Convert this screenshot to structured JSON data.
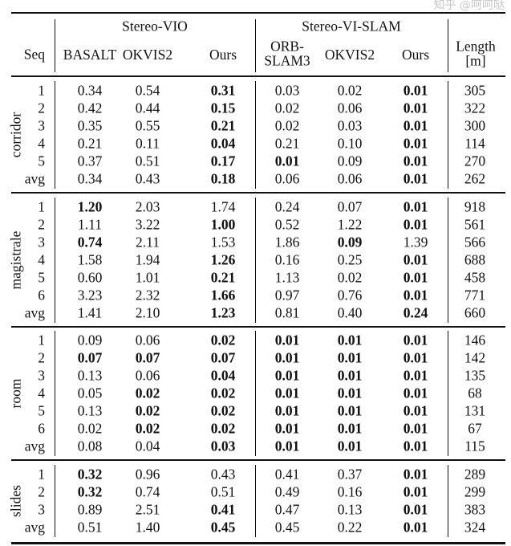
{
  "table": {
    "group_headers": [
      "Stereo-VIO",
      "Stereo-VI-SLAM"
    ],
    "columns": [
      "Seq",
      "BASALT",
      "OKVIS2",
      "Ours",
      "ORB-\nSLAM3",
      "OKVIS2",
      "Ours",
      "Length\n[m]"
    ],
    "sections": [
      {
        "name": "corridor",
        "rows": [
          {
            "seq": "1",
            "values": [
              "0.34",
              "0.54",
              "0.31",
              "0.03",
              "0.02",
              "0.01"
            ],
            "bold": [
              false,
              false,
              true,
              false,
              false,
              true
            ],
            "length": "305"
          },
          {
            "seq": "2",
            "values": [
              "0.42",
              "0.44",
              "0.15",
              "0.02",
              "0.06",
              "0.01"
            ],
            "bold": [
              false,
              false,
              true,
              false,
              false,
              true
            ],
            "length": "322"
          },
          {
            "seq": "3",
            "values": [
              "0.35",
              "0.55",
              "0.21",
              "0.02",
              "0.03",
              "0.01"
            ],
            "bold": [
              false,
              false,
              true,
              false,
              false,
              true
            ],
            "length": "300"
          },
          {
            "seq": "4",
            "values": [
              "0.21",
              "0.11",
              "0.04",
              "0.21",
              "0.10",
              "0.01"
            ],
            "bold": [
              false,
              false,
              true,
              false,
              false,
              true
            ],
            "length": "114"
          },
          {
            "seq": "5",
            "values": [
              "0.37",
              "0.51",
              "0.17",
              "0.01",
              "0.09",
              "0.01"
            ],
            "bold": [
              false,
              false,
              true,
              true,
              false,
              true
            ],
            "length": "270"
          },
          {
            "seq": "avg",
            "values": [
              "0.34",
              "0.43",
              "0.18",
              "0.06",
              "0.06",
              "0.01"
            ],
            "bold": [
              false,
              false,
              true,
              false,
              false,
              true
            ],
            "length": "262"
          }
        ]
      },
      {
        "name": "magistrale",
        "rows": [
          {
            "seq": "1",
            "values": [
              "1.20",
              "2.03",
              "1.74",
              "0.24",
              "0.07",
              "0.01"
            ],
            "bold": [
              true,
              false,
              false,
              false,
              false,
              true
            ],
            "length": "918"
          },
          {
            "seq": "2",
            "values": [
              "1.11",
              "3.22",
              "1.00",
              "0.52",
              "1.22",
              "0.01"
            ],
            "bold": [
              false,
              false,
              true,
              false,
              false,
              true
            ],
            "length": "561"
          },
          {
            "seq": "3",
            "values": [
              "0.74",
              "2.11",
              "1.53",
              "1.86",
              "0.09",
              "1.39"
            ],
            "bold": [
              true,
              false,
              false,
              false,
              true,
              false
            ],
            "length": "566"
          },
          {
            "seq": "4",
            "values": [
              "1.58",
              "1.94",
              "1.26",
              "0.16",
              "0.25",
              "0.01"
            ],
            "bold": [
              false,
              false,
              true,
              false,
              false,
              true
            ],
            "length": "688"
          },
          {
            "seq": "5",
            "values": [
              "0.60",
              "1.01",
              "0.21",
              "1.13",
              "0.02",
              "0.01"
            ],
            "bold": [
              false,
              false,
              true,
              false,
              false,
              true
            ],
            "length": "458"
          },
          {
            "seq": "6",
            "values": [
              "3.23",
              "2.32",
              "1.66",
              "0.97",
              "0.76",
              "0.01"
            ],
            "bold": [
              false,
              false,
              true,
              false,
              false,
              true
            ],
            "length": "771"
          },
          {
            "seq": "avg",
            "values": [
              "1.41",
              "2.10",
              "1.23",
              "0.81",
              "0.40",
              "0.24"
            ],
            "bold": [
              false,
              false,
              true,
              false,
              false,
              true
            ],
            "length": "660"
          }
        ]
      },
      {
        "name": "room",
        "rows": [
          {
            "seq": "1",
            "values": [
              "0.09",
              "0.06",
              "0.02",
              "0.01",
              "0.01",
              "0.01"
            ],
            "bold": [
              false,
              false,
              true,
              true,
              true,
              true
            ],
            "length": "146"
          },
          {
            "seq": "2",
            "values": [
              "0.07",
              "0.07",
              "0.07",
              "0.01",
              "0.01",
              "0.01"
            ],
            "bold": [
              true,
              true,
              true,
              true,
              true,
              true
            ],
            "length": "142"
          },
          {
            "seq": "3",
            "values": [
              "0.13",
              "0.06",
              "0.04",
              "0.01",
              "0.01",
              "0.01"
            ],
            "bold": [
              false,
              false,
              true,
              true,
              true,
              true
            ],
            "length": "135"
          },
          {
            "seq": "4",
            "values": [
              "0.05",
              "0.02",
              "0.02",
              "0.01",
              "0.01",
              "0.01"
            ],
            "bold": [
              false,
              true,
              true,
              true,
              true,
              true
            ],
            "length": "68"
          },
          {
            "seq": "5",
            "values": [
              "0.13",
              "0.02",
              "0.02",
              "0.01",
              "0.01",
              "0.01"
            ],
            "bold": [
              false,
              true,
              true,
              true,
              true,
              true
            ],
            "length": "131"
          },
          {
            "seq": "6",
            "values": [
              "0.02",
              "0.02",
              "0.02",
              "0.01",
              "0.01",
              "0.01"
            ],
            "bold": [
              false,
              true,
              true,
              true,
              true,
              true
            ],
            "length": "67"
          },
          {
            "seq": "avg",
            "values": [
              "0.08",
              "0.04",
              "0.03",
              "0.01",
              "0.01",
              "0.01"
            ],
            "bold": [
              false,
              false,
              true,
              true,
              true,
              true
            ],
            "length": "115"
          }
        ]
      },
      {
        "name": "slides",
        "rows": [
          {
            "seq": "1",
            "values": [
              "0.32",
              "0.96",
              "0.43",
              "0.41",
              "0.37",
              "0.01"
            ],
            "bold": [
              true,
              false,
              false,
              false,
              false,
              true
            ],
            "length": "289"
          },
          {
            "seq": "2",
            "values": [
              "0.32",
              "0.74",
              "0.51",
              "0.49",
              "0.16",
              "0.01"
            ],
            "bold": [
              true,
              false,
              false,
              false,
              false,
              true
            ],
            "length": "299"
          },
          {
            "seq": "3",
            "values": [
              "0.89",
              "2.51",
              "0.41",
              "0.47",
              "0.13",
              "0.01"
            ],
            "bold": [
              false,
              false,
              true,
              false,
              false,
              true
            ],
            "length": "383"
          },
          {
            "seq": "avg",
            "values": [
              "0.51",
              "1.40",
              "0.45",
              "0.45",
              "0.22",
              "0.01"
            ],
            "bold": [
              false,
              false,
              true,
              false,
              false,
              true
            ],
            "length": "324"
          }
        ]
      }
    ]
  },
  "watermark": "知乎 @呵呵哒"
}
